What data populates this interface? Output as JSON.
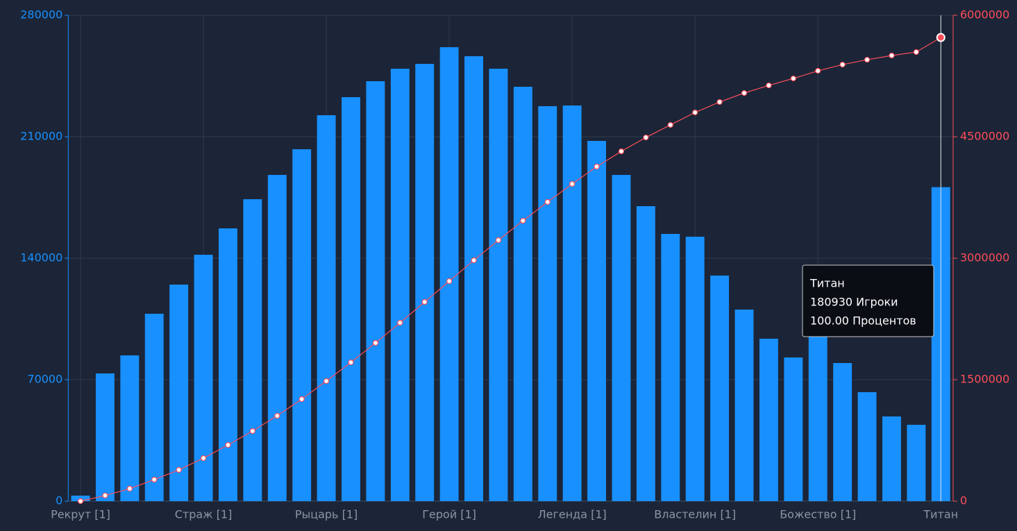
{
  "chart_data": {
    "type": "bar_line",
    "categories": [
      "Рекрут [1]",
      null,
      null,
      null,
      null,
      "Страж [1]",
      null,
      null,
      null,
      null,
      "Рыцарь [1]",
      null,
      null,
      null,
      null,
      "Герой [1]",
      null,
      null,
      null,
      null,
      "Легенда [1]",
      null,
      null,
      null,
      null,
      "Властелин [1]",
      null,
      null,
      null,
      null,
      "Божество [1]",
      null,
      null,
      null,
      null,
      "Титан"
    ],
    "series": [
      {
        "type": "bar",
        "color": "#1890ff",
        "values": [
          3200,
          73600,
          84000,
          108000,
          124800,
          142000,
          157200,
          174000,
          188000,
          202800,
          222400,
          232800,
          242000,
          249200,
          252000,
          261600,
          256400,
          249200,
          238800,
          227600,
          228000,
          207600,
          188000,
          170000,
          154000,
          152400,
          130000,
          110400,
          93600,
          82800,
          96000,
          79600,
          62800,
          48800,
          44000,
          180930
        ]
      },
      {
        "type": "line",
        "axis": "y2",
        "color": "#ff4d5a",
        "values": [
          0,
          70000,
          154000,
          266000,
          386000,
          531000,
          694000,
          866000,
          1054000,
          1260000,
          1483000,
          1714000,
          1954000,
          2203000,
          2460000,
          2717000,
          2974000,
          3223000,
          3463000,
          3694000,
          3917000,
          4131000,
          4320000,
          4491000,
          4646000,
          4800000,
          4929000,
          5040000,
          5134000,
          5220000,
          5314000,
          5391000,
          5451000,
          5503000,
          5546000,
          5726000
        ]
      }
    ],
    "ylim": [
      0,
      280000
    ],
    "yticks": [
      0,
      70000,
      140000,
      210000,
      280000
    ],
    "y2lim": [
      0,
      6000000
    ],
    "y2ticks": [
      0,
      1500000,
      3000000,
      4500000,
      6000000
    ],
    "grid": true,
    "tooltip": {
      "title": "Титан",
      "line1": "180930 Игроки",
      "line2": "100.00 Процентов"
    }
  }
}
